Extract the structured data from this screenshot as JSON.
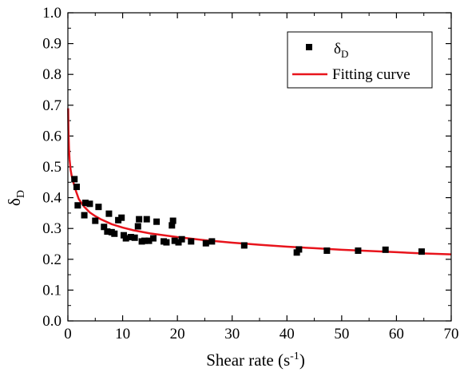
{
  "chart_data": {
    "type": "scatter",
    "xlabel": "Shear rate (s",
    "xlabel_sup": "-1",
    "xlabel_tail": ")",
    "ylabel": "δ",
    "ylabel_sub": "D",
    "xlim": [
      0,
      70
    ],
    "ylim": [
      0.0,
      1.0
    ],
    "x_ticks": [
      "0",
      "10",
      "20",
      "30",
      "40",
      "50",
      "60",
      "70"
    ],
    "y_ticks": [
      "0.0",
      "0.1",
      "0.2",
      "0.3",
      "0.4",
      "0.5",
      "0.6",
      "0.7",
      "0.8",
      "0.9",
      "1.0"
    ],
    "grid": false,
    "legend_position": "top-right",
    "series": [
      {
        "name": "δ",
        "name_sub": "D",
        "marker": "square",
        "color": "#000000",
        "points": [
          [
            1.2,
            0.46
          ],
          [
            1.6,
            0.435
          ],
          [
            1.8,
            0.375
          ],
          [
            3.0,
            0.343
          ],
          [
            3.2,
            0.383
          ],
          [
            4.0,
            0.38
          ],
          [
            5.0,
            0.325
          ],
          [
            5.6,
            0.37
          ],
          [
            6.6,
            0.305
          ],
          [
            7.2,
            0.29
          ],
          [
            7.5,
            0.348
          ],
          [
            8.0,
            0.288
          ],
          [
            8.5,
            0.283
          ],
          [
            9.2,
            0.327
          ],
          [
            9.8,
            0.335
          ],
          [
            10.2,
            0.278
          ],
          [
            10.6,
            0.268
          ],
          [
            11.5,
            0.272
          ],
          [
            12.2,
            0.27
          ],
          [
            12.8,
            0.307
          ],
          [
            13.0,
            0.33
          ],
          [
            13.5,
            0.258
          ],
          [
            14.0,
            0.26
          ],
          [
            14.4,
            0.33
          ],
          [
            14.8,
            0.26
          ],
          [
            15.6,
            0.268
          ],
          [
            16.2,
            0.322
          ],
          [
            17.5,
            0.258
          ],
          [
            18.0,
            0.255
          ],
          [
            19.0,
            0.31
          ],
          [
            19.2,
            0.325
          ],
          [
            19.5,
            0.26
          ],
          [
            20.2,
            0.255
          ],
          [
            20.8,
            0.265
          ],
          [
            22.5,
            0.258
          ],
          [
            25.2,
            0.252
          ],
          [
            26.3,
            0.258
          ],
          [
            32.2,
            0.245
          ],
          [
            41.8,
            0.222
          ],
          [
            42.2,
            0.232
          ],
          [
            47.3,
            0.228
          ],
          [
            53.0,
            0.228
          ],
          [
            58.0,
            0.231
          ],
          [
            64.6,
            0.225
          ]
        ]
      },
      {
        "name": "Fitting curve",
        "type": "line",
        "color": "#e8141c",
        "x": [
          0.05,
          0.1,
          0.2,
          0.3,
          0.5,
          0.7,
          1.0,
          1.5,
          2.0,
          3.0,
          4.0,
          5.0,
          6.0,
          8.0,
          10.0,
          12.0,
          15.0,
          20.0,
          25.0,
          30.0,
          35.0,
          40.0,
          45.0,
          50.0,
          55.0,
          60.0,
          65.0,
          70.0
        ],
        "y": [
          0.69,
          0.62,
          0.56,
          0.525,
          0.49,
          0.47,
          0.45,
          0.42,
          0.395,
          0.37,
          0.352,
          0.34,
          0.33,
          0.314,
          0.303,
          0.294,
          0.284,
          0.272,
          0.262,
          0.254,
          0.247,
          0.241,
          0.236,
          0.231,
          0.227,
          0.223,
          0.219,
          0.216
        ]
      }
    ]
  }
}
